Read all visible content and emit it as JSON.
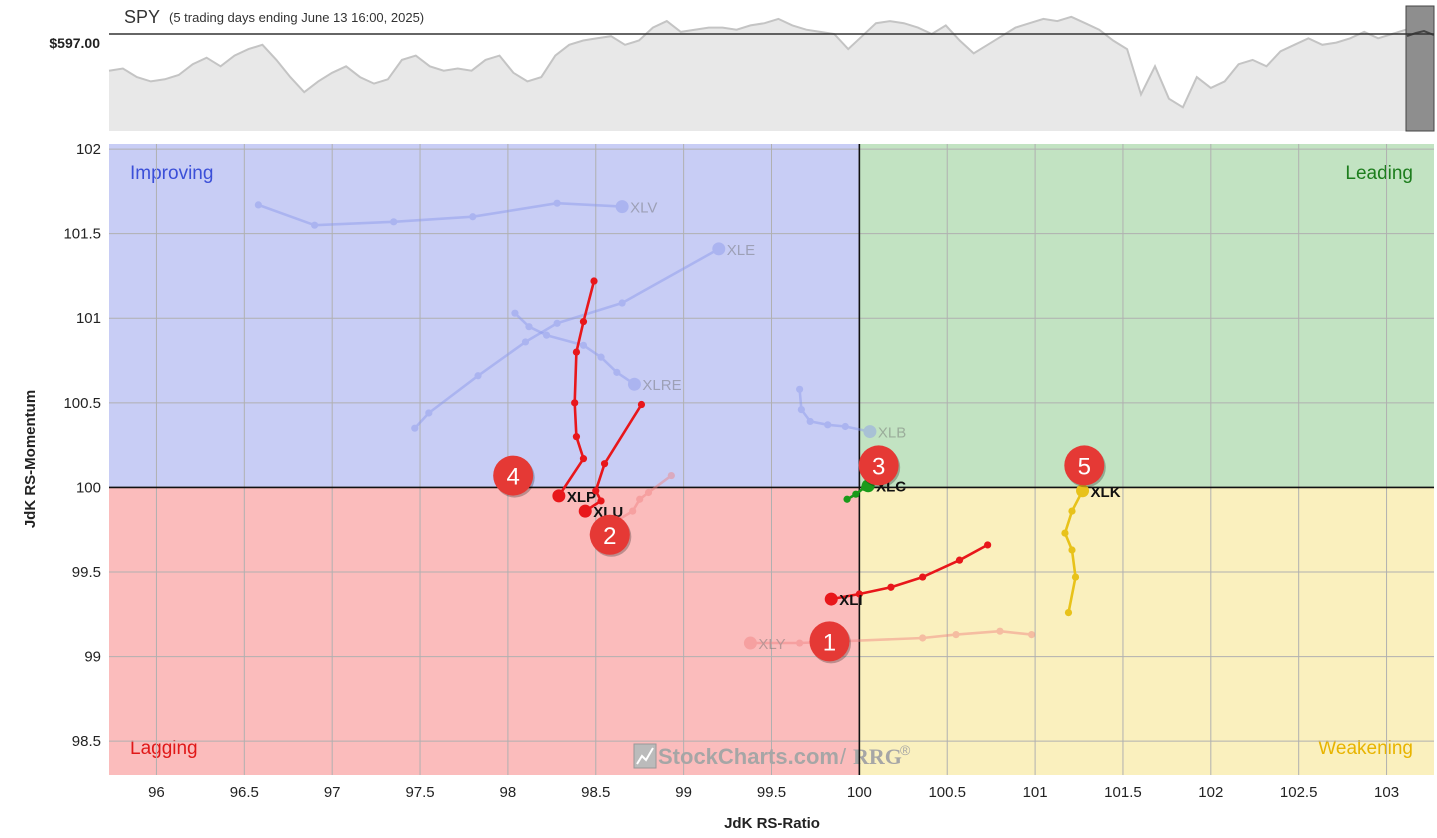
{
  "header": {
    "symbol": "SPY",
    "subtitle": "(5 trading days ending June 13 16:00, 2025)",
    "price_label": "$597.00"
  },
  "watermark": {
    "brand": "StockCharts.com",
    "product": "RRG",
    "reg_mark": "®"
  },
  "colors": {
    "improving": "#c8cdf5",
    "leading": "#c2e3c2",
    "lagging": "#fbbcbc",
    "weakening": "#faf0be",
    "improving_text": "#3b4fd8",
    "leading_text": "#1d7d1d",
    "lagging_text": "#e01818",
    "weakening_text": "#e8b400",
    "marker_red": "#e53935"
  },
  "chart_data": {
    "type": "scatter",
    "xlabel": "JdK RS-Ratio",
    "ylabel": "JdK RS-Momentum",
    "xlim": [
      95.73,
      103.27
    ],
    "ylim": [
      98.3,
      102.03
    ],
    "x_ticks": [
      "96",
      "96.5",
      "97",
      "97.5",
      "98",
      "98.5",
      "99",
      "99.5",
      "100",
      "100.5",
      "101",
      "101.5",
      "102",
      "102.5",
      "103"
    ],
    "y_ticks": [
      "102",
      "101.5",
      "101",
      "100.5",
      "100",
      "99.5",
      "99",
      "98.5"
    ],
    "grid": true,
    "quadrants": {
      "improving": "Improving",
      "leading": "Leading",
      "lagging": "Lagging",
      "weakening": "Weakening"
    },
    "series": [
      {
        "name": "XLV",
        "color": "#8a98ec",
        "faded": true,
        "points": [
          [
            96.58,
            101.67
          ],
          [
            96.9,
            101.55
          ],
          [
            97.35,
            101.57
          ],
          [
            97.8,
            101.6
          ],
          [
            98.28,
            101.68
          ],
          [
            98.65,
            101.66
          ]
        ]
      },
      {
        "name": "XLE",
        "color": "#8a98ec",
        "faded": true,
        "points": [
          [
            97.47,
            100.35
          ],
          [
            97.55,
            100.44
          ],
          [
            97.83,
            100.66
          ],
          [
            98.1,
            100.86
          ],
          [
            98.28,
            100.97
          ],
          [
            98.65,
            101.09
          ],
          [
            99.2,
            101.41
          ]
        ]
      },
      {
        "name": "XLRE",
        "color": "#8a98ec",
        "faded": true,
        "points": [
          [
            98.04,
            101.03
          ],
          [
            98.12,
            100.95
          ],
          [
            98.22,
            100.9
          ],
          [
            98.43,
            100.84
          ],
          [
            98.53,
            100.77
          ],
          [
            98.62,
            100.68
          ],
          [
            98.72,
            100.61
          ]
        ]
      },
      {
        "name": "XLB",
        "color": "#8a98ec",
        "faded": true,
        "points": [
          [
            99.66,
            100.58
          ],
          [
            99.67,
            100.46
          ],
          [
            99.72,
            100.39
          ],
          [
            99.82,
            100.37
          ],
          [
            99.92,
            100.36
          ],
          [
            100.06,
            100.33
          ]
        ]
      },
      {
        "name": "XLY",
        "color": "#f08080",
        "faded": true,
        "points": [
          [
            100.98,
            99.13
          ],
          [
            100.8,
            99.15
          ],
          [
            100.55,
            99.13
          ],
          [
            100.36,
            99.11
          ],
          [
            99.66,
            99.08
          ],
          [
            99.38,
            99.08
          ]
        ]
      },
      {
        "name": "",
        "color": "#f08080",
        "faded": true,
        "points": [
          [
            98.93,
            100.07
          ],
          [
            98.8,
            99.97
          ],
          [
            98.75,
            99.93
          ],
          [
            98.71,
            99.86
          ],
          [
            98.6,
            99.79
          ],
          [
            98.5,
            99.72
          ]
        ]
      },
      {
        "name": "XLP",
        "color": "#e8171b",
        "faded": false,
        "points": [
          [
            98.49,
            101.22
          ],
          [
            98.43,
            100.98
          ],
          [
            98.39,
            100.8
          ],
          [
            98.38,
            100.5
          ],
          [
            98.39,
            100.3
          ],
          [
            98.43,
            100.17
          ],
          [
            98.29,
            99.95
          ]
        ]
      },
      {
        "name": "XLU",
        "color": "#e8171b",
        "faded": false,
        "points": [
          [
            98.76,
            100.49
          ],
          [
            98.55,
            100.14
          ],
          [
            98.5,
            99.98
          ],
          [
            98.53,
            99.92
          ],
          [
            98.44,
            99.86
          ]
        ]
      },
      {
        "name": "XLI",
        "color": "#e8171b",
        "faded": false,
        "points": [
          [
            100.73,
            99.66
          ],
          [
            100.57,
            99.57
          ],
          [
            100.36,
            99.47
          ],
          [
            100.18,
            99.41
          ],
          [
            100.0,
            99.37
          ],
          [
            99.84,
            99.34
          ]
        ]
      },
      {
        "name": "XLK",
        "color": "#e8c21a",
        "faded": false,
        "points": [
          [
            101.19,
            99.26
          ],
          [
            101.23,
            99.47
          ],
          [
            101.21,
            99.63
          ],
          [
            101.17,
            99.73
          ],
          [
            101.21,
            99.86
          ],
          [
            101.27,
            99.98
          ]
        ]
      },
      {
        "name": "XLC",
        "color": "#1a9a1a",
        "faded": false,
        "points": [
          [
            99.93,
            99.93
          ],
          [
            99.98,
            99.96
          ],
          [
            100.03,
            100.0
          ],
          [
            100.05,
            100.01
          ]
        ]
      }
    ],
    "callouts": [
      {
        "label": "1",
        "x": 99.83,
        "y": 99.09
      },
      {
        "label": "2",
        "x": 98.58,
        "y": 99.72
      },
      {
        "label": "3",
        "x": 100.11,
        "y": 100.13
      },
      {
        "label": "4",
        "x": 98.03,
        "y": 100.07
      },
      {
        "label": "5",
        "x": 101.28,
        "y": 100.13
      }
    ]
  },
  "spy_chart": {
    "level": 597.0,
    "values": [
      595.3,
      595.4,
      595.0,
      594.8,
      594.9,
      595.1,
      595.6,
      595.9,
      595.5,
      596.0,
      596.3,
      596.5,
      595.8,
      595.0,
      594.3,
      594.8,
      595.2,
      595.5,
      595.0,
      594.7,
      594.9,
      595.8,
      596.0,
      595.5,
      595.3,
      595.4,
      595.3,
      595.8,
      596.0,
      595.2,
      594.8,
      595.0,
      596.0,
      596.5,
      596.7,
      596.8,
      596.9,
      596.5,
      596.7,
      597.3,
      597.6,
      597.1,
      597.2,
      597.3,
      597.3,
      597.2,
      597.4,
      597.5,
      597.7,
      597.4,
      597.2,
      597.1,
      597.0,
      596.3,
      596.9,
      597.5,
      597.6,
      597.5,
      597.3,
      597.0,
      597.4,
      596.7,
      596.1,
      596.5,
      596.9,
      597.3,
      597.5,
      597.7,
      597.6,
      597.8,
      597.5,
      597.2,
      596.7,
      596.3,
      594.2,
      595.5,
      594.0,
      593.6,
      595.0,
      594.5,
      594.8,
      595.6,
      595.8,
      595.5,
      596.2,
      596.5,
      596.8,
      596.5,
      596.6,
      596.8,
      597.1,
      596.8,
      597.0,
      597.2
    ],
    "ymin": 592.5,
    "ymax": 598.3
  }
}
